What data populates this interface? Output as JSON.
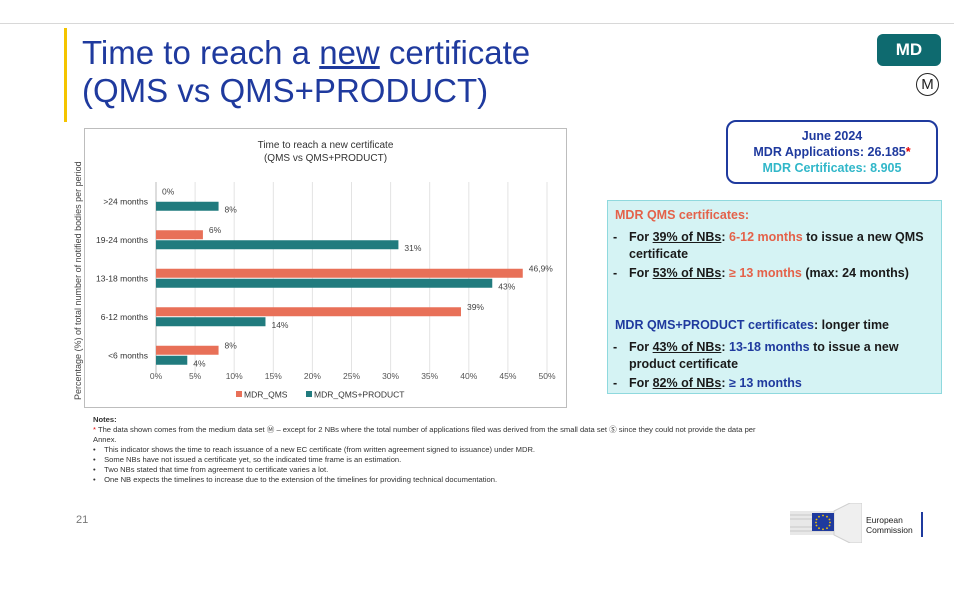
{
  "slide": {
    "title_line1_pre": "Time to reach a ",
    "title_line1_underlined": "new",
    "title_line1_post": " certificate",
    "title_line2": "(QMS vs QMS+PRODUCT)",
    "badge": "MD",
    "badge_symbol": "M",
    "page_number": "21"
  },
  "summary": {
    "date": "June 2024",
    "applications": "MDR Applications: 26.185",
    "applications_star": "*",
    "certificates": "MDR Certificates: 8.905"
  },
  "info": {
    "qms_heading": "MDR QMS certificates:",
    "qms_items": [
      {
        "pre": "For ",
        "u": "39% of NBs",
        "mid": ": ",
        "hl": "6-12 months",
        "post": " to issue a new QMS certificate"
      },
      {
        "pre": "For ",
        "u": "53% of NBs",
        "mid": ": ",
        "hl": "≥ 13 months",
        "post": " (max: 24 months)"
      }
    ],
    "qp_heading_hl": "MDR QMS+PRODUCT certificates",
    "qp_heading_post": ": longer time",
    "qp_items": [
      {
        "pre": "For ",
        "u": "43% of NBs",
        "mid": ": ",
        "hl": "13-18 months",
        "post": " to issue a new product certificate"
      },
      {
        "pre": "For ",
        "u": "82% of NBs",
        "mid": ": ",
        "hl": "≥ 13 months",
        "post": ""
      }
    ]
  },
  "notes": {
    "heading": "Notes:",
    "star": "*",
    "line1": " The data shown comes from the medium data set Ⓜ – except for 2 NBs where the total number of applications filed was derived from the small data set Ⓢ since they could not provide the data per Annex.",
    "bullets": [
      "This indicator shows the time to reach issuance of a new EC certificate (from written agreement signed to issuance) under MDR.",
      "Some NBs have not issued a certificate yet, so the indicated time frame is an estimation.",
      "Two NBs stated that time from agreement to certificate varies a lot.",
      "One NB expects the timelines to increase due to the extension of the timelines for providing technical documentation."
    ]
  },
  "logo": {
    "line1": "European",
    "line2": "Commission"
  },
  "colors": {
    "qms": "#e87058",
    "qms_product": "#217b7e",
    "title_blue": "#1f3a9e",
    "teal_badge": "#0e6a6f"
  },
  "chart_data": {
    "type": "bar",
    "orientation": "horizontal",
    "title": "Time to reach a new certificate\n(QMS vs QMS+PRODUCT)",
    "title_line1": "Time to reach a new certificate",
    "title_line2": "(QMS vs QMS+PRODUCT)",
    "ylabel": "Percentage (%) of total number of notified bodies per period",
    "categories": [
      ">24 months",
      "19-24 months",
      "13-18 months",
      "6-12 months",
      "<6 months"
    ],
    "series": [
      {
        "name": "MDR_QMS",
        "values": [
          0,
          6,
          46.9,
          39,
          8
        ],
        "labels": [
          "0%",
          "6%",
          "46,9%",
          "39%",
          "8%"
        ]
      },
      {
        "name": "MDR_QMS+PRODUCT",
        "values": [
          8,
          31,
          43,
          14,
          4
        ],
        "labels": [
          "8%",
          "31%",
          "43%",
          "14%",
          "4%"
        ]
      }
    ],
    "xlim": [
      0,
      50
    ],
    "xticks": [
      "0%",
      "5%",
      "10%",
      "15%",
      "20%",
      "25%",
      "30%",
      "35%",
      "40%",
      "45%",
      "50%"
    ],
    "grid": true,
    "legend": "bottom"
  }
}
